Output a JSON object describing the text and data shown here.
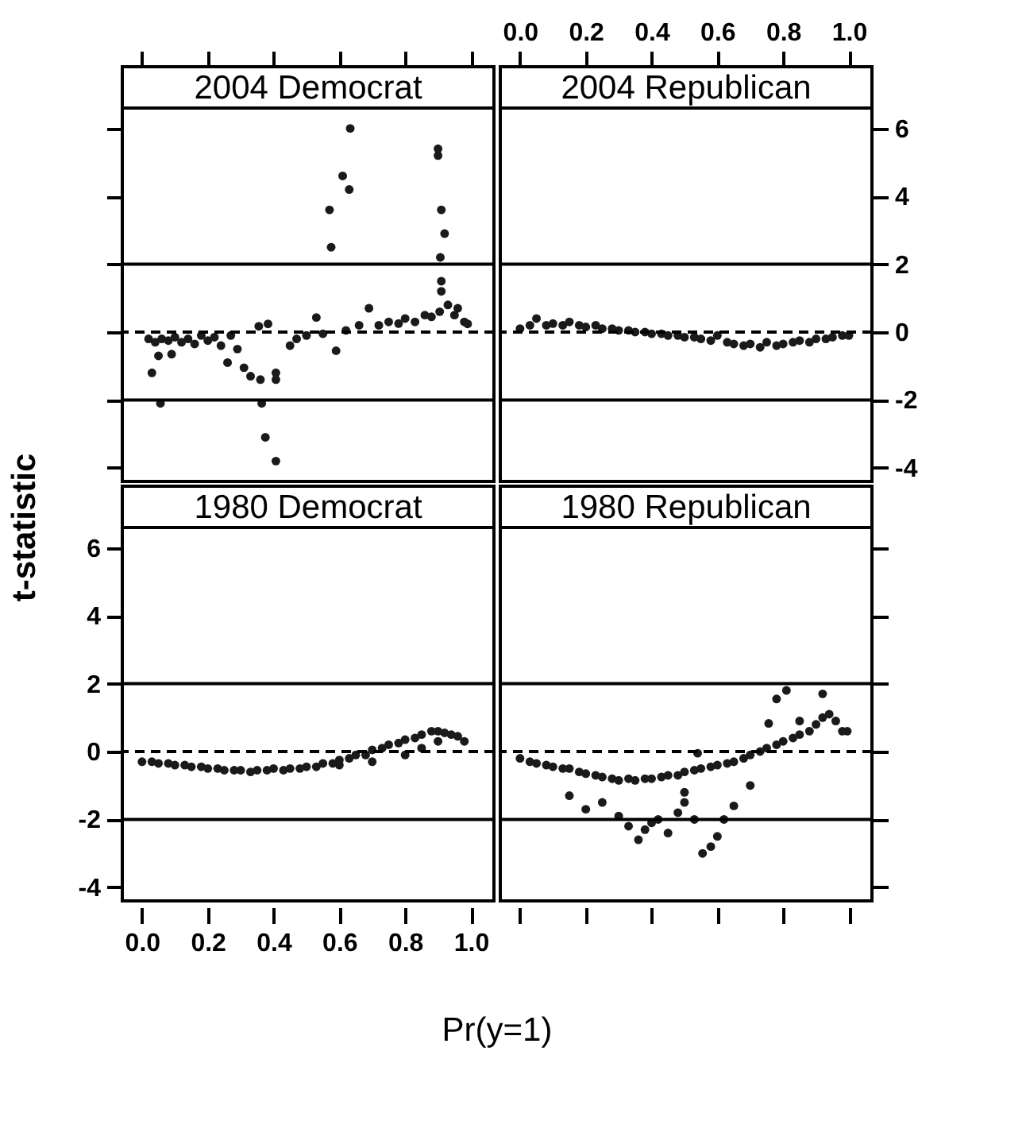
{
  "chart_data": [
    {
      "type": "scatter",
      "title": "2004 Democrat",
      "marker": "circle",
      "tick_labels": false,
      "xlim": [
        -0.06,
        1.07
      ],
      "ylim": [
        -4.4,
        6.6
      ],
      "xticks": [
        0,
        0.2,
        0.4,
        0.6,
        0.8,
        1
      ],
      "yticks": [
        -4,
        -2,
        0,
        2,
        4,
        6
      ],
      "ref_lines": [
        {
          "axis": "y",
          "value": 2,
          "color": "#000000",
          "line_style": "solid"
        },
        {
          "axis": "y",
          "value": -2,
          "color": "#000000",
          "line_style": "solid"
        },
        {
          "axis": "y",
          "value": 0,
          "color": "#000000",
          "line_style": "dashed"
        }
      ],
      "series": [
        {
          "color": "#1a1a1a",
          "x": [
            0.02,
            0.03,
            0.04,
            0.05,
            0.056,
            0.06,
            0.08,
            0.09,
            0.1,
            0.12,
            0.14,
            0.16,
            0.18,
            0.2,
            0.22,
            0.24,
            0.26,
            0.27,
            0.29,
            0.31,
            0.33,
            0.355,
            0.36,
            0.364,
            0.375,
            0.383,
            0.407,
            0.407,
            0.407,
            0.45,
            0.47,
            0.5,
            0.53,
            0.55,
            0.57,
            0.575,
            0.59,
            0.61,
            0.62,
            0.63,
            0.633,
            0.66,
            0.69,
            0.72,
            0.75,
            0.78,
            0.8,
            0.83,
            0.86,
            0.88,
            0.9,
            0.9,
            0.905,
            0.907,
            0.91,
            0.91,
            0.91,
            0.92,
            0.93,
            0.95,
            0.96,
            0.98,
            0.99
          ],
          "values": [
            -0.2,
            -1.2,
            -0.3,
            -0.7,
            -2.1,
            -0.2,
            -0.25,
            -0.65,
            -0.15,
            -0.3,
            -0.2,
            -0.35,
            -0.1,
            -0.25,
            -0.15,
            -0.4,
            -0.9,
            -0.1,
            -0.5,
            -1.05,
            -1.3,
            0.17,
            -1.4,
            -2.1,
            -3.1,
            0.24,
            -1.2,
            -1.4,
            -3.8,
            -0.4,
            -0.2,
            -0.1,
            0.43,
            -0.05,
            3.6,
            2.5,
            -0.55,
            4.6,
            0.05,
            4.2,
            6.0,
            0.2,
            0.7,
            0.2,
            0.3,
            0.25,
            0.4,
            0.3,
            0.5,
            0.45,
            5.4,
            5.2,
            0.6,
            2.2,
            3.6,
            1.5,
            1.2,
            2.9,
            0.8,
            0.5,
            0.7,
            0.3,
            0.24
          ]
        }
      ]
    },
    {
      "type": "scatter",
      "title": "2004 Republican",
      "marker": "circle",
      "xlim": [
        -0.06,
        1.07
      ],
      "ylim": [
        -4.4,
        6.6
      ],
      "xticks": [
        {
          "value": 0,
          "label": "0.0"
        },
        {
          "value": 0.2,
          "label": "0.2"
        },
        {
          "value": 0.4,
          "label": "0.4"
        },
        {
          "value": 0.6,
          "label": "0.6"
        },
        {
          "value": 0.8,
          "label": "0.8"
        },
        {
          "value": 1,
          "label": "1.0"
        }
      ],
      "yticks": [
        -4,
        -2,
        0,
        2,
        4,
        6
      ],
      "ref_lines": [
        {
          "axis": "y",
          "value": 2,
          "color": "#000000",
          "line_style": "solid"
        },
        {
          "axis": "y",
          "value": -2,
          "color": "#000000",
          "line_style": "solid"
        },
        {
          "axis": "y",
          "value": 0,
          "color": "#000000",
          "line_style": "dashed"
        }
      ],
      "series": [
        {
          "color": "#1a1a1a",
          "x": [
            0.0,
            0.03,
            0.05,
            0.08,
            0.1,
            0.13,
            0.15,
            0.18,
            0.2,
            0.23,
            0.25,
            0.28,
            0.3,
            0.33,
            0.35,
            0.38,
            0.4,
            0.43,
            0.45,
            0.48,
            0.5,
            0.53,
            0.55,
            0.58,
            0.6,
            0.63,
            0.65,
            0.68,
            0.7,
            0.73,
            0.75,
            0.78,
            0.8,
            0.83,
            0.85,
            0.88,
            0.9,
            0.93,
            0.95,
            0.98,
            1.0
          ],
          "values": [
            0.1,
            0.2,
            0.4,
            0.2,
            0.25,
            0.2,
            0.3,
            0.2,
            0.15,
            0.2,
            0.1,
            0.1,
            0.05,
            0.05,
            0.0,
            0.0,
            -0.05,
            -0.05,
            -0.1,
            -0.1,
            -0.15,
            -0.15,
            -0.2,
            -0.25,
            -0.1,
            -0.3,
            -0.35,
            -0.4,
            -0.35,
            -0.45,
            -0.3,
            -0.4,
            -0.35,
            -0.3,
            -0.25,
            -0.3,
            -0.2,
            -0.2,
            -0.15,
            -0.1,
            -0.1
          ]
        }
      ]
    },
    {
      "type": "scatter",
      "title": "1980 Democrat",
      "marker": "circle",
      "xlabel": "Pr(y=1)",
      "ylabel": "t-statistic",
      "xlim": [
        -0.06,
        1.07
      ],
      "ylim": [
        -4.4,
        6.6
      ],
      "xticks": [
        {
          "value": 0,
          "label": "0.0"
        },
        {
          "value": 0.2,
          "label": "0.2"
        },
        {
          "value": 0.4,
          "label": "0.4"
        },
        {
          "value": 0.6,
          "label": "0.6"
        },
        {
          "value": 0.8,
          "label": "0.8"
        },
        {
          "value": 1,
          "label": "1.0"
        }
      ],
      "yticks": [
        -4,
        -2,
        0,
        2,
        4,
        6
      ],
      "ref_lines": [
        {
          "axis": "y",
          "value": 2,
          "color": "#000000",
          "line_style": "solid"
        },
        {
          "axis": "y",
          "value": -2,
          "color": "#000000",
          "line_style": "solid"
        },
        {
          "axis": "y",
          "value": 0,
          "color": "#000000",
          "line_style": "dashed"
        }
      ],
      "series": [
        {
          "color": "#1a1a1a",
          "x": [
            0.0,
            0.03,
            0.05,
            0.08,
            0.1,
            0.13,
            0.15,
            0.18,
            0.2,
            0.23,
            0.25,
            0.28,
            0.3,
            0.33,
            0.35,
            0.38,
            0.4,
            0.43,
            0.45,
            0.48,
            0.5,
            0.53,
            0.55,
            0.58,
            0.6,
            0.63,
            0.65,
            0.68,
            0.7,
            0.73,
            0.75,
            0.78,
            0.8,
            0.83,
            0.85,
            0.88,
            0.9,
            0.92,
            0.94,
            0.96,
            0.98,
            0.6,
            0.7,
            0.8,
            0.85,
            0.9
          ],
          "values": [
            -0.3,
            -0.3,
            -0.35,
            -0.35,
            -0.4,
            -0.4,
            -0.45,
            -0.45,
            -0.5,
            -0.5,
            -0.55,
            -0.55,
            -0.55,
            -0.6,
            -0.55,
            -0.55,
            -0.5,
            -0.55,
            -0.5,
            -0.5,
            -0.45,
            -0.45,
            -0.35,
            -0.35,
            -0.25,
            -0.2,
            -0.1,
            -0.1,
            0.05,
            0.1,
            0.2,
            0.25,
            0.35,
            0.4,
            0.5,
            0.6,
            0.6,
            0.55,
            0.5,
            0.45,
            0.3,
            -0.4,
            -0.3,
            -0.1,
            0.1,
            0.3
          ]
        }
      ]
    },
    {
      "type": "scatter",
      "title": "1980 Republican",
      "marker": "circle",
      "tick_labels": false,
      "xlim": [
        -0.06,
        1.07
      ],
      "ylim": [
        -4.4,
        6.6
      ],
      "xticks": [
        0,
        0.2,
        0.4,
        0.6,
        0.8,
        1
      ],
      "yticks": [
        -4,
        -2,
        0,
        2,
        4,
        6
      ],
      "ref_lines": [
        {
          "axis": "y",
          "value": 2,
          "color": "#000000",
          "line_style": "solid"
        },
        {
          "axis": "y",
          "value": -2,
          "color": "#000000",
          "line_style": "solid"
        },
        {
          "axis": "y",
          "value": 0,
          "color": "#000000",
          "line_style": "dashed"
        }
      ],
      "series": [
        {
          "color": "#1a1a1a",
          "x": [
            0.0,
            0.03,
            0.05,
            0.08,
            0.1,
            0.13,
            0.15,
            0.18,
            0.2,
            0.23,
            0.25,
            0.28,
            0.3,
            0.33,
            0.35,
            0.38,
            0.4,
            0.43,
            0.45,
            0.48,
            0.5,
            0.53,
            0.55,
            0.58,
            0.6,
            0.63,
            0.65,
            0.68,
            0.7,
            0.73,
            0.75,
            0.78,
            0.8,
            0.83,
            0.85,
            0.88,
            0.9,
            0.92,
            0.94,
            0.96,
            0.98,
            0.15,
            0.2,
            0.25,
            0.3,
            0.33,
            0.36,
            0.38,
            0.4,
            0.42,
            0.45,
            0.48,
            0.5,
            0.53,
            0.555,
            0.58,
            0.6,
            0.62,
            0.65,
            0.7,
            0.756,
            0.78,
            0.81,
            0.85,
            0.92,
            0.995,
            0.54,
            0.5
          ],
          "values": [
            -0.2,
            -0.3,
            -0.35,
            -0.4,
            -0.45,
            -0.5,
            -0.5,
            -0.6,
            -0.65,
            -0.7,
            -0.75,
            -0.8,
            -0.85,
            -0.8,
            -0.85,
            -0.8,
            -0.8,
            -0.75,
            -0.7,
            -0.7,
            -0.6,
            -0.55,
            -0.5,
            -0.45,
            -0.4,
            -0.35,
            -0.3,
            -0.2,
            -0.1,
            0.0,
            0.1,
            0.2,
            0.3,
            0.4,
            0.5,
            0.6,
            0.8,
            1.0,
            1.1,
            0.9,
            0.6,
            -1.3,
            -1.7,
            -1.5,
            -1.9,
            -2.2,
            -2.6,
            -2.3,
            -2.1,
            -2.0,
            -2.4,
            -1.8,
            -1.5,
            -2.0,
            -3.0,
            -2.8,
            -2.5,
            -2.0,
            -1.6,
            -1.0,
            0.83,
            1.55,
            1.8,
            0.9,
            1.7,
            0.6,
            -0.05,
            -1.2
          ]
        }
      ]
    }
  ]
}
